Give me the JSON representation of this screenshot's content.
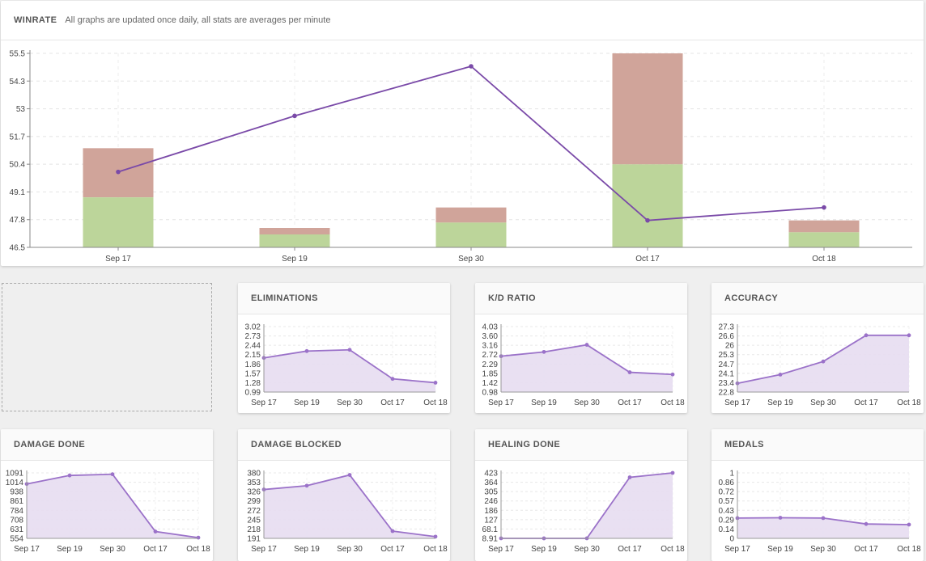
{
  "header": {
    "title": "WINRATE",
    "subtitle": "All graphs are updated once daily, all stats are averages per minute"
  },
  "colors": {
    "line": "#7a4aa8",
    "win_bar": "#bcd59a",
    "loss_bar": "#d0a49a",
    "area_fill": "#e7ddf1",
    "area_line": "#9b72c9"
  },
  "chart_data": [
    {
      "id": "winrate",
      "type": "bar",
      "title": "WINRATE",
      "categories": [
        "Sep 17",
        "Sep 19",
        "Sep 30",
        "Oct 17",
        "Oct 18"
      ],
      "yticks": [
        "55.5",
        "54.3",
        "53",
        "51.7",
        "50.4",
        "49.1",
        "47.8",
        "46.5"
      ],
      "ylim": [
        46.5,
        55.5
      ],
      "grid": true,
      "series": [
        {
          "type": "bar",
          "stack": "bottom",
          "values": [
            48.82,
            47.1,
            47.65,
            50.35,
            47.2
          ]
        },
        {
          "type": "bar",
          "stack": "top",
          "values": [
            51.1,
            47.4,
            48.35,
            55.5,
            47.75
          ]
        },
        {
          "type": "line",
          "values": [
            50.0,
            52.6,
            54.9,
            47.75,
            48.35
          ]
        }
      ]
    },
    {
      "id": "eliminations",
      "type": "area",
      "title": "ELIMINATIONS",
      "categories": [
        "Sep 17",
        "Sep 19",
        "Sep 30",
        "Oct 17",
        "Oct 18"
      ],
      "yticks": [
        "3.02",
        "2.73",
        "2.44",
        "2.15",
        "1.86",
        "1.57",
        "1.28",
        "0.99"
      ],
      "ylim": [
        0.99,
        3.02
      ],
      "values": [
        2.05,
        2.26,
        2.3,
        1.4,
        1.28
      ]
    },
    {
      "id": "kd",
      "type": "area",
      "title": "K/D RATIO",
      "categories": [
        "Sep 17",
        "Sep 19",
        "Sep 30",
        "Oct 17",
        "Oct 18"
      ],
      "yticks": [
        "4.03",
        "3.60",
        "3.16",
        "2.72",
        "2.29",
        "1.85",
        "1.42",
        "0.98"
      ],
      "ylim": [
        0.98,
        4.03
      ],
      "values": [
        2.65,
        2.85,
        3.18,
        1.9,
        1.8
      ]
    },
    {
      "id": "accuracy",
      "type": "area",
      "title": "ACCURACY",
      "categories": [
        "Sep 17",
        "Sep 19",
        "Sep 30",
        "Oct 17",
        "Oct 18"
      ],
      "yticks": [
        "27.3",
        "26.6",
        "26",
        "25.3",
        "24.7",
        "24.1",
        "23.4",
        "22.8"
      ],
      "ylim": [
        22.8,
        27.3
      ],
      "values": [
        23.4,
        24.0,
        24.9,
        26.7,
        26.7
      ]
    },
    {
      "id": "damage_done",
      "type": "area",
      "title": "DAMAGE DONE",
      "categories": [
        "Sep 17",
        "Sep 19",
        "Sep 30",
        "Oct 17",
        "Oct 18"
      ],
      "yticks": [
        "1091",
        "1014",
        "938",
        "861",
        "784",
        "708",
        "631",
        "554"
      ],
      "ylim": [
        554,
        1091
      ],
      "values": [
        1000,
        1070,
        1080,
        610,
        560
      ]
    },
    {
      "id": "damage_blocked",
      "type": "area",
      "title": "DAMAGE BLOCKED",
      "categories": [
        "Sep 17",
        "Sep 19",
        "Sep 30",
        "Oct 17",
        "Oct 18"
      ],
      "yticks": [
        "380",
        "353",
        "326",
        "299",
        "272",
        "245",
        "218",
        "191"
      ],
      "ylim": [
        191,
        380
      ],
      "values": [
        332,
        343,
        374,
        212,
        196
      ]
    },
    {
      "id": "healing_done",
      "type": "area",
      "title": "HEALING DONE",
      "categories": [
        "Sep 17",
        "Sep 19",
        "Sep 30",
        "Oct 17",
        "Oct 18"
      ],
      "yticks": [
        "423",
        "364",
        "305",
        "246",
        "186",
        "127",
        "68.1",
        "8.91"
      ],
      "ylim": [
        8.91,
        423
      ],
      "values": [
        9,
        8.91,
        9,
        395,
        423
      ]
    },
    {
      "id": "medals",
      "type": "area",
      "title": "MEDALS",
      "categories": [
        "Sep 17",
        "Sep 19",
        "Sep 30",
        "Oct 17",
        "Oct 18"
      ],
      "yticks": [
        "1",
        "0.86",
        "0.72",
        "0.57",
        "0.43",
        "0.29",
        "0.14",
        "0"
      ],
      "ylim": [
        0,
        1
      ],
      "values": [
        0.31,
        0.315,
        0.31,
        0.22,
        0.21
      ]
    }
  ]
}
